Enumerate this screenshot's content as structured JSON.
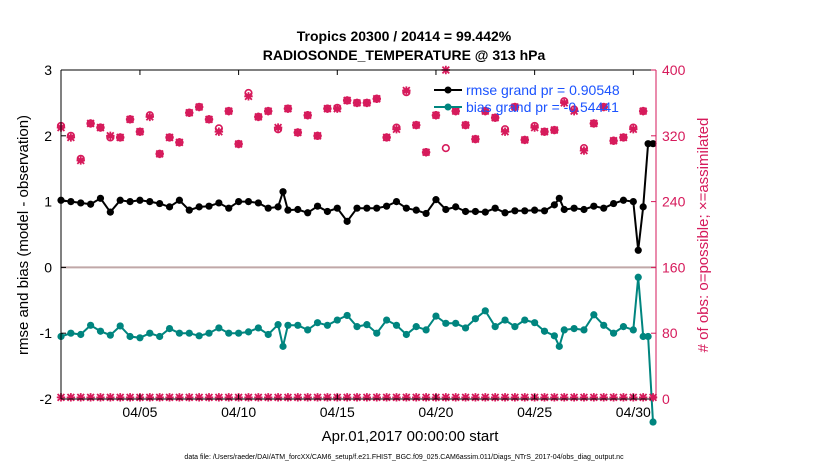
{
  "chart_data": {
    "type": "line",
    "title": "Tropics 20300 / 20414 = 99.442%",
    "subtitle": "RADIOSONDE_TEMPERATURE @ 313 hPa",
    "xlabel": "Apr.01,2017 00:00:00 start",
    "ylabel_left": "rmse and bias (model - observation)",
    "ylabel_right": "# of obs: o=possible; ×=assimilated",
    "xlim": [
      1.0,
      31.15
    ],
    "ylim_left": [
      -2,
      3
    ],
    "ylim_right": [
      0,
      400
    ],
    "x_ticks": [
      5,
      10,
      15,
      20,
      25,
      30
    ],
    "x_tick_labels": [
      "04/05",
      "04/10",
      "04/15",
      "04/20",
      "04/25",
      "04/30"
    ],
    "y_left_ticks": [
      -2,
      -1,
      0,
      1,
      2,
      3
    ],
    "y_left_tick_labels": [
      "-2",
      "-1",
      "0",
      "1",
      "2",
      "3"
    ],
    "y_right_ticks": [
      0,
      80,
      160,
      240,
      320,
      400
    ],
    "y_right_tick_labels": [
      "0",
      "80",
      "160",
      "240",
      "320",
      "400"
    ],
    "legend": {
      "location": "top-right",
      "entries": [
        "rmse grand pr = 0.90548",
        "bias grand pr = -0.54441"
      ]
    },
    "colors": {
      "rmse": "#000000",
      "bias": "#00857f",
      "obs": "#d61a5b",
      "zero_line": "#c0a8a8",
      "axis_right": "#d61a5b",
      "legend_text": "#1b53ff"
    },
    "series": [
      {
        "name": "rmse",
        "axis": "left",
        "x": [
          1.0,
          1.5,
          2.0,
          2.5,
          3.0,
          3.5,
          4.0,
          4.5,
          5.0,
          5.5,
          6.0,
          6.5,
          7.0,
          7.5,
          8.0,
          8.5,
          9.0,
          9.5,
          10.0,
          10.5,
          11.0,
          11.5,
          12.0,
          12.25,
          12.5,
          13.0,
          13.5,
          14.0,
          14.5,
          15.0,
          15.5,
          16.0,
          16.5,
          17.0,
          17.5,
          18.0,
          18.5,
          19.0,
          19.5,
          20.0,
          20.5,
          21.0,
          21.5,
          22.0,
          22.5,
          23.0,
          23.5,
          24.0,
          24.5,
          25.0,
          25.5,
          26.0,
          26.25,
          26.5,
          27.0,
          27.5,
          28.0,
          28.5,
          29.0,
          29.5,
          30.0,
          30.25,
          30.5,
          30.75,
          31.0
        ],
        "values": [
          1.02,
          1.0,
          0.98,
          0.96,
          1.05,
          0.84,
          1.02,
          1.0,
          1.02,
          1.0,
          0.97,
          0.92,
          1.02,
          0.87,
          0.92,
          0.93,
          0.98,
          0.9,
          1.0,
          1.0,
          0.98,
          0.9,
          0.92,
          1.15,
          0.87,
          0.88,
          0.83,
          0.93,
          0.85,
          0.9,
          0.7,
          0.9,
          0.9,
          0.9,
          0.93,
          1.0,
          0.9,
          0.87,
          0.82,
          1.03,
          0.88,
          0.92,
          0.85,
          0.85,
          0.84,
          0.9,
          0.83,
          0.86,
          0.86,
          0.87,
          0.86,
          0.95,
          1.05,
          0.88,
          0.9,
          0.88,
          0.93,
          0.9,
          0.97,
          1.02,
          1.0,
          0.26,
          0.92,
          1.88,
          1.88
        ]
      },
      {
        "name": "bias",
        "axis": "left",
        "x": [
          1.0,
          1.5,
          2.0,
          2.5,
          3.0,
          3.5,
          4.0,
          4.5,
          5.0,
          5.5,
          6.0,
          6.5,
          7.0,
          7.5,
          8.0,
          8.5,
          9.0,
          9.5,
          10.0,
          10.5,
          11.0,
          11.5,
          12.0,
          12.25,
          12.5,
          13.0,
          13.5,
          14.0,
          14.5,
          15.0,
          15.5,
          16.0,
          16.5,
          17.0,
          17.5,
          18.0,
          18.5,
          19.0,
          19.5,
          20.0,
          20.5,
          21.0,
          21.5,
          22.0,
          22.5,
          23.0,
          23.5,
          24.0,
          24.5,
          25.0,
          25.5,
          26.0,
          26.25,
          26.5,
          27.0,
          27.5,
          28.0,
          28.5,
          29.0,
          29.5,
          30.0,
          30.25,
          30.5,
          30.75,
          31.0
        ],
        "values": [
          -1.05,
          -1.0,
          -1.02,
          -0.88,
          -0.97,
          -1.03,
          -0.89,
          -1.05,
          -1.07,
          -1.0,
          -1.05,
          -0.93,
          -1.0,
          -1.0,
          -1.04,
          -1.0,
          -0.92,
          -1.0,
          -1.0,
          -0.98,
          -0.92,
          -1.02,
          -0.87,
          -1.2,
          -0.88,
          -0.88,
          -0.95,
          -0.84,
          -0.88,
          -0.8,
          -0.73,
          -0.9,
          -0.87,
          -1.0,
          -0.8,
          -0.88,
          -1.02,
          -0.9,
          -0.95,
          -0.74,
          -0.85,
          -0.85,
          -0.92,
          -0.78,
          -0.66,
          -0.9,
          -0.8,
          -0.9,
          -0.8,
          -0.84,
          -0.97,
          -1.04,
          -1.2,
          -0.95,
          -0.93,
          -0.95,
          -0.72,
          -0.88,
          -1.0,
          -0.9,
          -0.95,
          -0.15,
          -1.05,
          -1.05,
          -2.35
        ]
      },
      {
        "name": "obs possible",
        "axis": "right",
        "marker": "o",
        "x": [
          1.0,
          1.5,
          2.0,
          2.5,
          3.0,
          3.5,
          4.0,
          4.5,
          5.0,
          5.5,
          6.0,
          6.5,
          7.0,
          7.5,
          8.0,
          8.5,
          9.0,
          9.5,
          10.0,
          10.5,
          11.0,
          11.5,
          12.0,
          12.5,
          13.0,
          13.5,
          14.0,
          14.5,
          15.0,
          15.5,
          16.0,
          16.5,
          17.0,
          17.5,
          18.0,
          18.5,
          19.0,
          19.5,
          20.0,
          20.5,
          21.0,
          21.5,
          22.0,
          22.5,
          23.0,
          23.5,
          24.0,
          24.5,
          25.0,
          25.5,
          26.0,
          26.5,
          27.0,
          27.5,
          28.0,
          28.5,
          29.0,
          29.5,
          30.0,
          30.5
        ],
        "values": [
          332,
          320,
          292,
          335,
          330,
          318,
          318,
          340,
          325,
          345,
          298,
          318,
          312,
          348,
          355,
          340,
          329,
          350,
          310,
          372,
          343,
          350,
          328,
          353,
          324,
          345,
          320,
          353,
          354,
          363,
          360,
          360,
          365,
          318,
          330,
          373,
          333,
          300,
          345,
          305,
          350,
          333,
          316,
          350,
          342,
          328,
          355,
          315,
          332,
          325,
          327,
          362,
          352,
          305,
          335,
          355,
          314,
          318,
          330,
          350
        ]
      },
      {
        "name": "obs assimilated",
        "axis": "right",
        "marker": "x",
        "x": [
          1.0,
          1.5,
          2.0,
          2.5,
          3.0,
          3.5,
          4.0,
          4.5,
          5.0,
          5.5,
          6.0,
          6.5,
          7.0,
          7.5,
          8.0,
          8.5,
          9.0,
          9.5,
          10.0,
          10.5,
          11.0,
          11.5,
          12.0,
          12.5,
          13.0,
          13.5,
          14.0,
          14.5,
          15.0,
          15.5,
          16.0,
          16.5,
          17.0,
          17.5,
          18.0,
          18.5,
          19.0,
          19.5,
          20.0,
          20.5,
          21.0,
          21.5,
          22.0,
          22.5,
          23.0,
          23.5,
          24.0,
          24.5,
          25.0,
          25.5,
          26.0,
          26.5,
          27.0,
          27.5,
          28.0,
          28.5,
          29.0,
          29.5,
          30.0,
          30.5
        ],
        "values": [
          330,
          318,
          290,
          335,
          330,
          320,
          318,
          340,
          325,
          343,
          298,
          318,
          312,
          348,
          355,
          340,
          325,
          350,
          310,
          368,
          343,
          350,
          330,
          353,
          324,
          345,
          320,
          353,
          353,
          363,
          360,
          360,
          365,
          318,
          328,
          375,
          333,
          300,
          345,
          400,
          350,
          333,
          316,
          350,
          342,
          325,
          355,
          315,
          330,
          325,
          327,
          360,
          350,
          302,
          335,
          355,
          314,
          318,
          328,
          350
        ]
      },
      {
        "name": "obs bottom",
        "axis": "right",
        "marker": "x",
        "x": [
          1.0,
          1.5,
          2.0,
          2.5,
          3.0,
          3.5,
          4.0,
          4.5,
          5.0,
          5.5,
          6.0,
          6.5,
          7.0,
          7.5,
          8.0,
          8.5,
          9.0,
          9.5,
          10.0,
          10.5,
          11.0,
          11.5,
          12.0,
          12.5,
          13.0,
          13.5,
          14.0,
          14.5,
          15.0,
          15.5,
          16.0,
          16.5,
          17.0,
          17.5,
          18.0,
          18.5,
          19.0,
          19.5,
          20.0,
          20.5,
          21.0,
          21.5,
          22.0,
          22.5,
          23.0,
          23.5,
          24.0,
          24.5,
          25.0,
          25.5,
          26.0,
          26.5,
          27.0,
          27.5,
          28.0,
          28.5,
          29.0,
          29.5,
          30.0,
          30.5,
          31.0
        ],
        "values": [
          2,
          2,
          2,
          2,
          2,
          2,
          2,
          2,
          2,
          2,
          2,
          2,
          2,
          2,
          2,
          2,
          2,
          2,
          2,
          2,
          2,
          2,
          2,
          2,
          2,
          2,
          2,
          2,
          2,
          2,
          2,
          2,
          2,
          2,
          2,
          2,
          2,
          2,
          2,
          2,
          2,
          2,
          2,
          2,
          2,
          2,
          2,
          2,
          2,
          2,
          2,
          2,
          2,
          2,
          2,
          2,
          2,
          2,
          2,
          2,
          2
        ]
      }
    ]
  },
  "footer": {
    "data_file": "data file: /Users/raeder/DAI/ATM_forcXX/CAM6_setup/f.e21.FHIST_BGC.f09_025.CAM6assim.011/Diags_NTrS_2017-04/obs_diag_output.nc"
  }
}
